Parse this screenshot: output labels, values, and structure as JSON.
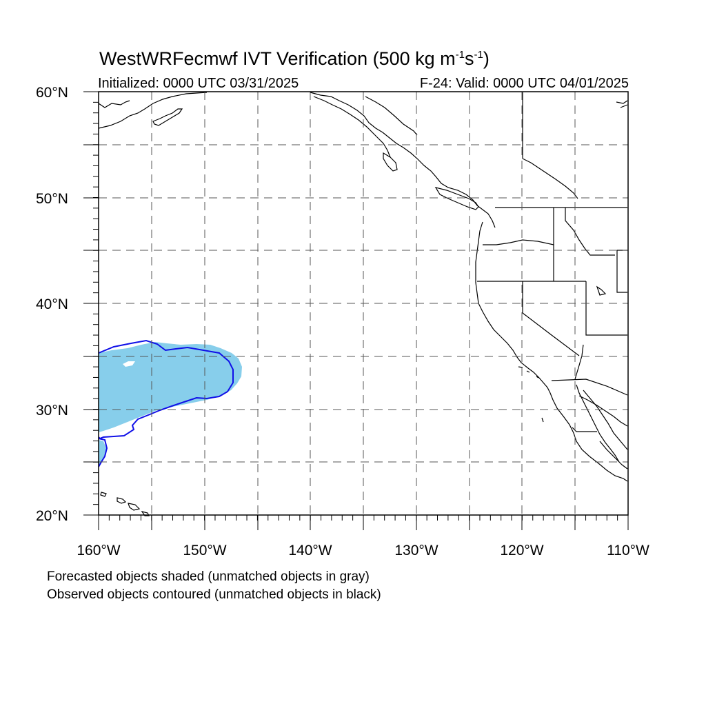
{
  "title": {
    "main": "WestWRFecmwf IVT Verification (500 kg m",
    "exp1": "-1",
    "mid": "s",
    "exp2": "-1",
    "close": ")"
  },
  "subtitle_left": "Initialized: 0000 UTC 03/31/2025",
  "subtitle_right": "F-24: Valid: 0000 UTC 04/01/2025",
  "lat_labels": [
    "60°N",
    "50°N",
    "40°N",
    "30°N",
    "20°N"
  ],
  "lon_labels": [
    "160°W",
    "150°W",
    "140°W",
    "130°W",
    "120°W",
    "110°W"
  ],
  "captions": [
    "Forecasted objects shaded (unmatched objects in gray)",
    "Observed objects contoured (unmatched objects in black)"
  ],
  "colors": {
    "forecast_fill": "#87ceeb",
    "observed_contour": "#1010e8",
    "coastline": "#000000",
    "grid": "#555555"
  },
  "map": {
    "lon_range": [
      -160,
      -110
    ],
    "lat_range": [
      20,
      60
    ]
  }
}
